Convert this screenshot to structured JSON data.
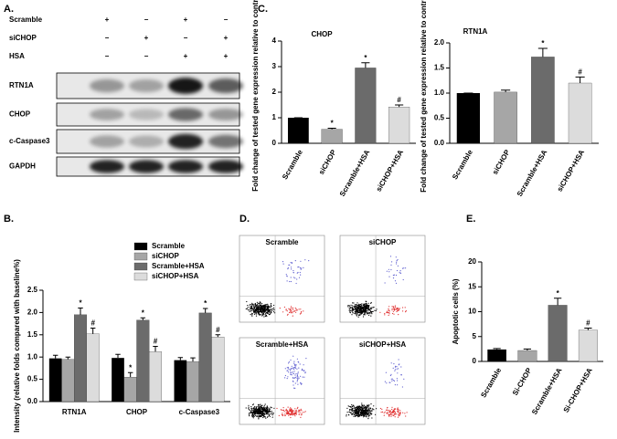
{
  "panel_labels": [
    "A.",
    "B.",
    "C.",
    "D.",
    "E."
  ],
  "blot": {
    "conditions": [
      {
        "name": "Scramble",
        "signs": [
          "+",
          "−",
          "+",
          "−"
        ]
      },
      {
        "name": "siCHOP",
        "signs": [
          "−",
          "+",
          "−",
          "+"
        ]
      },
      {
        "name": "HSA",
        "signs": [
          "−",
          "−",
          "+",
          "+"
        ]
      }
    ],
    "bands": [
      "RTN1A",
      "CHOP",
      "c-Caspase3",
      "GAPDH"
    ]
  },
  "flow": {
    "titles": [
      "Scramble",
      "siCHOP",
      "Scramble+HSA",
      "siCHOP+HSA"
    ]
  },
  "chart_data": [
    {
      "type": "bar",
      "ylabel": "Intensity (relative folds compared with baseline%)",
      "categories": [
        "RTN1A",
        "CHOP",
        "c-Caspase3"
      ],
      "series": [
        {
          "name": "Scramble",
          "color": "#000000",
          "values": [
            0.97,
            0.98,
            0.93
          ],
          "errors": [
            0.07,
            0.08,
            0.06
          ],
          "markers": [
            null,
            null,
            null
          ]
        },
        {
          "name": "siCHOP",
          "color": "#a6a6a6",
          "values": [
            0.95,
            0.55,
            0.9
          ],
          "errors": [
            0.05,
            0.1,
            0.08
          ],
          "markers": [
            null,
            "*",
            null
          ]
        },
        {
          "name": "Scramble+HSA",
          "color": "#6b6b6b",
          "values": [
            1.95,
            1.83,
            1.99
          ],
          "errors": [
            0.15,
            0.05,
            0.1
          ],
          "markers": [
            "*",
            "*",
            "*"
          ]
        },
        {
          "name": "siCHOP+HSA",
          "color": "#dcdcdc",
          "values": [
            1.52,
            1.12,
            1.45
          ],
          "errors": [
            0.13,
            0.12,
            0.05
          ],
          "markers": [
            "#",
            "#",
            "#"
          ]
        }
      ],
      "ylim": [
        0,
        2.5
      ],
      "yticks": [
        {
          "value": 0,
          "label": "0.0"
        },
        0.5,
        {
          "value": 1,
          "label": "1.0"
        },
        1.5,
        {
          "value": 2,
          "label": "2.0"
        },
        2.5
      ]
    },
    {
      "type": "bar",
      "title": "CHOP",
      "ylabel": "Fold change of tested gene expression relative to control",
      "categories": [
        "Scramble",
        "siCHOP",
        "Scramble+HSA",
        "siCHOP+HSA"
      ],
      "values": [
        1.0,
        0.55,
        2.95,
        1.42
      ],
      "errors": [
        0,
        0.04,
        0.2,
        0.08
      ],
      "markers": [
        null,
        "*",
        "*",
        "#"
      ],
      "colors": [
        "#000000",
        "#a6a6a6",
        "#6b6b6b",
        "#dcdcdc"
      ],
      "ylim": [
        0,
        4
      ],
      "yticks": [
        0,
        1,
        2,
        3,
        4
      ]
    },
    {
      "type": "bar",
      "title": "RTN1A",
      "ylabel": "Fold change of tested gene expression relative to control",
      "categories": [
        "Scramble",
        "siCHOP",
        "Scramble+HSA",
        "siCHOP+HSA"
      ],
      "values": [
        1.0,
        1.02,
        1.72,
        1.2
      ],
      "errors": [
        0,
        0.04,
        0.17,
        0.12
      ],
      "markers": [
        null,
        null,
        "*",
        "#"
      ],
      "colors": [
        "#000000",
        "#a6a6a6",
        "#6b6b6b",
        "#dcdcdc"
      ],
      "ylim": [
        0,
        2
      ],
      "yticks": [
        {
          "value": 0,
          "label": "0.0"
        },
        0.5,
        {
          "value": 1,
          "label": "1.0"
        },
        1.5,
        {
          "value": 2,
          "label": "2.0"
        }
      ]
    },
    {
      "type": "bar",
      "ylabel": "Apoptotic cells (%)",
      "categories": [
        "Scramble",
        "Si-CHOP",
        "Scramble+HSA",
        "Si-CHOP+HSA"
      ],
      "values": [
        2.4,
        2.2,
        11.3,
        6.3
      ],
      "errors": [
        0.2,
        0.3,
        1.4,
        0.4
      ],
      "markers": [
        null,
        null,
        "*",
        "#"
      ],
      "colors": [
        "#000000",
        "#a6a6a6",
        "#6b6b6b",
        "#dcdcdc"
      ],
      "ylim": [
        0,
        20
      ],
      "yticks": [
        0,
        5,
        10,
        15,
        20
      ]
    }
  ]
}
